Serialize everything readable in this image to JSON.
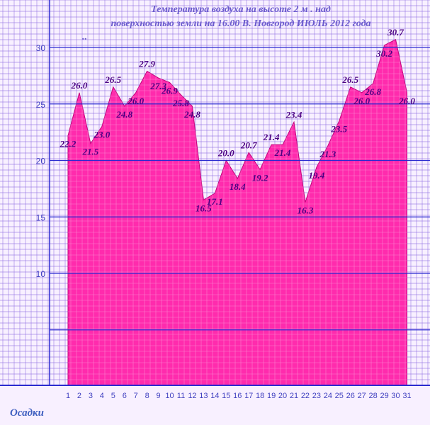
{
  "chart_data": {
    "type": "area",
    "title_lines": [
      "Температура  воздуха  на  высоте  2  м .  над",
      "поверхностью  земли  на  16.00  В. Новгород   ИЮЛЬ   2012  года",
      ".."
    ],
    "x": [
      1,
      2,
      3,
      4,
      5,
      6,
      7,
      8,
      9,
      10,
      11,
      12,
      13,
      14,
      15,
      16,
      17,
      18,
      19,
      20,
      21,
      22,
      23,
      24,
      25,
      26,
      27,
      28,
      29,
      30,
      31
    ],
    "x_tick_labels": [
      "1",
      "2",
      "3",
      "4",
      "5",
      "6",
      "7",
      "8",
      "9",
      "10",
      "11",
      "12",
      "13",
      "14",
      "15",
      "16",
      "17",
      "18",
      "19",
      "20",
      "21",
      "22",
      "23",
      "24",
      "25",
      "26",
      "27",
      "28",
      "29",
      "30",
      "31"
    ],
    "values": [
      22.2,
      26.0,
      21.5,
      23.0,
      26.5,
      24.8,
      26.0,
      27.9,
      27.3,
      26.9,
      25.8,
      24.8,
      16.5,
      17.1,
      20.0,
      18.4,
      20.7,
      19.2,
      21.4,
      21.4,
      23.4,
      16.3,
      19.4,
      21.3,
      23.5,
      26.5,
      26.0,
      26.8,
      30.2,
      30.7,
      26.0
    ],
    "value_labels": [
      "22.2",
      "26.0",
      "21.5",
      "23.0",
      "26.5",
      "24.8",
      "26.0",
      "27.9",
      "27.3",
      "26.9",
      "25.8",
      "24.8",
      "16.5",
      "17.1",
      "20.0",
      "18.4",
      "20.7",
      "19.2",
      "21.4",
      "21.4",
      "23.4",
      "16.3",
      "19.4",
      "21.3",
      "23.5",
      "26.5",
      "26.0",
      "26.8",
      "30.2",
      "30.7",
      "26.0"
    ],
    "y_ticks": [
      "10",
      "15",
      "20",
      "25",
      "30"
    ],
    "ylim": [
      0,
      34
    ],
    "grid": true,
    "fill_color": "#ff1aa6",
    "grid_color": "#8a6ae0",
    "major_line_color": "#2a2ad0",
    "footer_label": "Осадки"
  }
}
